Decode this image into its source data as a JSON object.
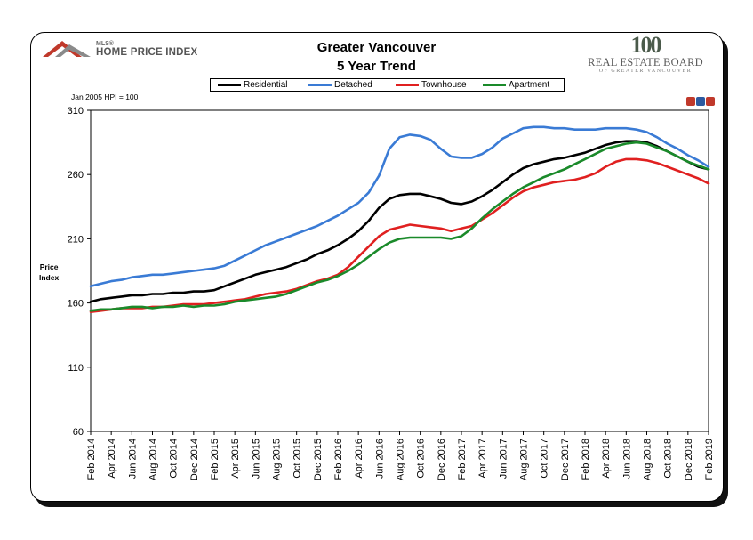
{
  "header": {
    "title_line1": "Greater Vancouver",
    "title_line2": "5 Year Trend",
    "left_logo_superscript": "MLS®",
    "left_logo_text": "HOME PRICE INDEX",
    "right_logo_number": "100",
    "right_logo_name": "REAL ESTATE BOARD",
    "right_logo_sub": "OF GREATER VANCOUVER",
    "note": "Jan 2005 HPI = 100"
  },
  "chart_data": {
    "type": "line",
    "title": "Greater Vancouver 5 Year Trend",
    "ylabel": "Price Index",
    "xlabel": "",
    "ylim": [
      60,
      310
    ],
    "yticks": [
      60,
      110,
      160,
      210,
      260,
      310
    ],
    "grid": false,
    "legend_placement": "top",
    "x": [
      "Feb 2014",
      "Mar 2014",
      "Apr 2014",
      "May 2014",
      "Jun 2014",
      "Jul 2014",
      "Aug 2014",
      "Sep 2014",
      "Oct 2014",
      "Nov 2014",
      "Dec 2014",
      "Jan 2015",
      "Feb 2015",
      "Mar 2015",
      "Apr 2015",
      "May 2015",
      "Jun 2015",
      "Jul 2015",
      "Aug 2015",
      "Sep 2015",
      "Oct 2015",
      "Nov 2015",
      "Dec 2015",
      "Jan 2016",
      "Feb 2016",
      "Mar 2016",
      "Apr 2016",
      "May 2016",
      "Jun 2016",
      "Jul 2016",
      "Aug 2016",
      "Sep 2016",
      "Oct 2016",
      "Nov 2016",
      "Dec 2016",
      "Jan 2017",
      "Feb 2017",
      "Mar 2017",
      "Apr 2017",
      "May 2017",
      "Jun 2017",
      "Jul 2017",
      "Aug 2017",
      "Sep 2017",
      "Oct 2017",
      "Nov 2017",
      "Dec 2017",
      "Jan 2018",
      "Feb 2018",
      "Mar 2018",
      "Apr 2018",
      "May 2018",
      "Jun 2018",
      "Jul 2018",
      "Aug 2018",
      "Sep 2018",
      "Oct 2018",
      "Nov 2018",
      "Dec 2018",
      "Jan 2019",
      "Feb 2019"
    ],
    "tick_labels": [
      "Feb 2014",
      "Apr 2014",
      "Jun 2014",
      "Aug 2014",
      "Oct 2014",
      "Dec 2014",
      "Feb 2015",
      "Apr 2015",
      "Jun 2015",
      "Aug 2015",
      "Oct 2015",
      "Dec 2015",
      "Feb 2016",
      "Apr 2016",
      "Jun 2016",
      "Aug 2016",
      "Oct 2016",
      "Dec 2016",
      "Feb 2017",
      "Apr 2017",
      "Jun 2017",
      "Aug 2017",
      "Oct 2017",
      "Dec 2017",
      "Feb 2018",
      "Apr 2018",
      "Jun 2018",
      "Aug 2018",
      "Oct 2018",
      "Dec 2018",
      "Feb 2019"
    ],
    "series": [
      {
        "name": "Residential",
        "color": "#000000",
        "values": [
          161,
          163,
          164,
          165,
          166,
          166,
          167,
          167,
          168,
          168,
          169,
          169,
          170,
          173,
          176,
          179,
          182,
          184,
          186,
          188,
          191,
          194,
          198,
          201,
          205,
          210,
          216,
          224,
          234,
          241,
          244,
          245,
          245,
          243,
          241,
          238,
          237,
          239,
          243,
          248,
          254,
          260,
          265,
          268,
          270,
          272,
          273,
          275,
          277,
          280,
          283,
          285,
          286,
          286,
          285,
          282,
          278,
          274,
          270,
          266,
          264
        ]
      },
      {
        "name": "Detached",
        "color": "#3a7bd5",
        "values": [
          173,
          175,
          177,
          178,
          180,
          181,
          182,
          182,
          183,
          184,
          185,
          186,
          187,
          189,
          193,
          197,
          201,
          205,
          208,
          211,
          214,
          217,
          220,
          224,
          228,
          233,
          238,
          246,
          259,
          280,
          289,
          291,
          290,
          287,
          280,
          274,
          273,
          273,
          276,
          281,
          288,
          292,
          296,
          297,
          297,
          296,
          296,
          295,
          295,
          295,
          296,
          296,
          296,
          295,
          293,
          289,
          284,
          280,
          275,
          271,
          266
        ]
      },
      {
        "name": "Townhouse",
        "color": "#e02020",
        "values": [
          153,
          154,
          155,
          156,
          156,
          156,
          157,
          157,
          158,
          159,
          159,
          159,
          160,
          161,
          162,
          163,
          165,
          167,
          168,
          169,
          171,
          174,
          177,
          179,
          182,
          188,
          196,
          204,
          212,
          217,
          219,
          221,
          220,
          219,
          218,
          216,
          218,
          220,
          225,
          230,
          236,
          242,
          247,
          250,
          252,
          254,
          255,
          256,
          258,
          261,
          266,
          270,
          272,
          272,
          271,
          269,
          266,
          263,
          260,
          257,
          253
        ]
      },
      {
        "name": "Apartment",
        "color": "#1a8a2a",
        "values": [
          154,
          155,
          155,
          156,
          157,
          157,
          156,
          157,
          157,
          158,
          157,
          158,
          158,
          159,
          161,
          162,
          163,
          164,
          165,
          167,
          170,
          173,
          176,
          178,
          181,
          185,
          190,
          196,
          202,
          207,
          210,
          211,
          211,
          211,
          211,
          210,
          212,
          218,
          226,
          233,
          239,
          245,
          250,
          254,
          258,
          261,
          264,
          268,
          272,
          276,
          280,
          282,
          284,
          285,
          284,
          281,
          278,
          274,
          270,
          267,
          264
        ]
      }
    ]
  }
}
